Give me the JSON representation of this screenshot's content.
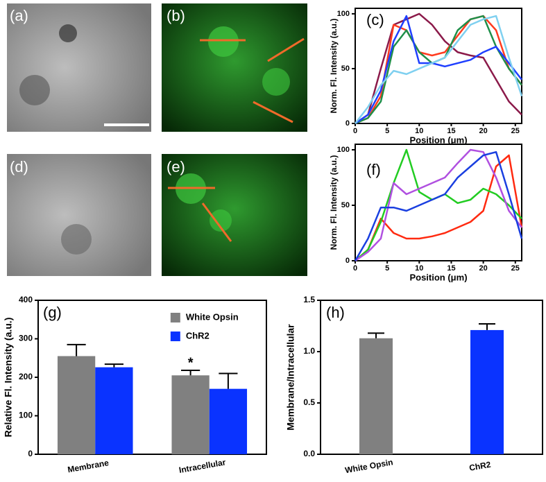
{
  "images": [
    {
      "label": "(a)"
    },
    {
      "label": "(b)"
    },
    {
      "label": "(d)"
    },
    {
      "label": "(e)"
    }
  ],
  "chart_data": [
    {
      "type": "line",
      "label": "(c)",
      "xlabel": "Position (μm)",
      "ylabel": "Norm. Fl. Intensity (a.u.)",
      "x": [
        0,
        2,
        4,
        6,
        8,
        10,
        12,
        14,
        16,
        18,
        20,
        22,
        24,
        26
      ],
      "xlim": [
        0,
        26
      ],
      "ylim": [
        0,
        105
      ],
      "xticks": [
        0,
        5,
        10,
        15,
        20,
        25
      ],
      "yticks": [
        0,
        50,
        100
      ],
      "series": [
        {
          "color": "#8b1a4a",
          "values": [
            0,
            8,
            50,
            90,
            95,
            100,
            90,
            75,
            65,
            62,
            60,
            40,
            20,
            8
          ]
        },
        {
          "color": "#ff3b1f",
          "values": [
            0,
            5,
            25,
            90,
            85,
            65,
            62,
            65,
            80,
            95,
            98,
            85,
            50,
            35
          ]
        },
        {
          "color": "#1f8f4a",
          "values": [
            0,
            5,
            20,
            70,
            85,
            65,
            55,
            60,
            85,
            95,
            98,
            70,
            50,
            35
          ]
        },
        {
          "color": "#1f3fff",
          "values": [
            0,
            8,
            30,
            75,
            98,
            55,
            55,
            52,
            55,
            58,
            65,
            70,
            55,
            40
          ]
        },
        {
          "color": "#7fd0f0",
          "values": [
            0,
            15,
            35,
            48,
            45,
            50,
            55,
            60,
            75,
            90,
            95,
            98,
            60,
            25
          ]
        }
      ]
    },
    {
      "type": "line",
      "label": "(f)",
      "xlabel": "Position (μm)",
      "ylabel": "Norm. Fl. Intensity (a.u.)",
      "x": [
        0,
        2,
        4,
        6,
        8,
        10,
        12,
        14,
        16,
        18,
        20,
        22,
        24,
        26
      ],
      "xlim": [
        0,
        26
      ],
      "ylim": [
        0,
        105
      ],
      "xticks": [
        0,
        5,
        10,
        15,
        20,
        25
      ],
      "yticks": [
        0,
        50,
        100
      ],
      "series": [
        {
          "color": "#ff2a10",
          "values": [
            0,
            10,
            38,
            25,
            20,
            20,
            22,
            25,
            30,
            35,
            45,
            85,
            95,
            30
          ]
        },
        {
          "color": "#22cc22",
          "values": [
            0,
            10,
            35,
            70,
            100,
            62,
            55,
            60,
            52,
            55,
            65,
            60,
            50,
            38
          ]
        },
        {
          "color": "#b050e0",
          "values": [
            0,
            8,
            20,
            70,
            60,
            65,
            70,
            75,
            88,
            100,
            98,
            75,
            45,
            30
          ]
        },
        {
          "color": "#1a3fe0",
          "values": [
            0,
            20,
            48,
            48,
            45,
            50,
            55,
            60,
            75,
            85,
            95,
            98,
            60,
            20
          ]
        }
      ]
    },
    {
      "type": "bar",
      "label": "(g)",
      "ylabel": "Relative Fl. Intensity (a.u.)",
      "categories": [
        "Membrane",
        "Intracellular"
      ],
      "ylim": [
        0,
        400
      ],
      "yticks": [
        0,
        100,
        200,
        300,
        400
      ],
      "annotation": "*",
      "legend": "upper center",
      "series": [
        {
          "name": "White Opsin",
          "color": "#808080",
          "values": [
            255,
            205
          ],
          "errors": [
            30,
            13
          ]
        },
        {
          "name": "ChR2",
          "color": "#0a33ff",
          "values": [
            226,
            170
          ],
          "errors": [
            8,
            40
          ]
        }
      ]
    },
    {
      "type": "bar",
      "label": "(h)",
      "ylabel": "Membrane/Intracellular",
      "categories": [
        "White Opsin",
        "ChR2"
      ],
      "ylim": [
        0,
        1.5
      ],
      "yticks": [
        {
          "value": 0,
          "label": "0.0"
        },
        0.5,
        {
          "value": 1,
          "label": "1.0"
        },
        1.5
      ],
      "series": [
        {
          "colors": [
            "#808080",
            "#0a33ff"
          ],
          "values": [
            1.13,
            1.21
          ],
          "errors": [
            0.05,
            0.06
          ]
        }
      ]
    }
  ]
}
